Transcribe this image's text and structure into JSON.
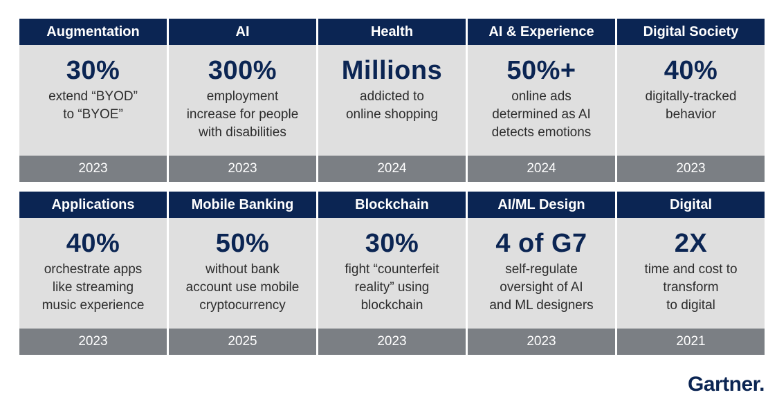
{
  "rows": [
    [
      {
        "title": "Augmentation",
        "stat": "30%",
        "desc": "extend “BYOD”\nto “BYOE”",
        "year": "2023"
      },
      {
        "title": "AI",
        "stat": "300%",
        "desc": "employment\nincrease for people\nwith disabilities",
        "year": "2023"
      },
      {
        "title": "Health",
        "stat": "Millions",
        "desc": "addicted to\nonline shopping",
        "year": "2024"
      },
      {
        "title": "AI & Experience",
        "stat": "50%+",
        "desc": "online ads\ndetermined as AI\ndetects emotions",
        "year": "2024"
      },
      {
        "title": "Digital Society",
        "stat": "40%",
        "desc": "digitally-tracked\nbehavior",
        "year": "2023"
      }
    ],
    [
      {
        "title": "Applications",
        "stat": "40%",
        "desc": "orchestrate apps\nlike streaming\nmusic experience",
        "year": "2023"
      },
      {
        "title": "Mobile Banking",
        "stat": "50%",
        "desc": "without bank\naccount use mobile\ncryptocurrency",
        "year": "2025"
      },
      {
        "title": "Blockchain",
        "stat": "30%",
        "desc": "fight “counterfeit\nreality” using\nblockchain",
        "year": "2023"
      },
      {
        "title": "AI/ML Design",
        "stat": "4 of G7",
        "desc": "self-regulate\noversight of AI\nand ML designers",
        "year": "2023"
      },
      {
        "title": "Digital",
        "stat": "2X",
        "desc": "time and cost to\ntransform\nto digital",
        "year": "2021"
      }
    ]
  ],
  "brand": {
    "logo_text": "Gartner.",
    "colors": {
      "header_bg": "#0b2553",
      "body_bg": "#dfdfdf",
      "year_bg": "#7b7f84",
      "stat_color": "#0b2553"
    }
  }
}
